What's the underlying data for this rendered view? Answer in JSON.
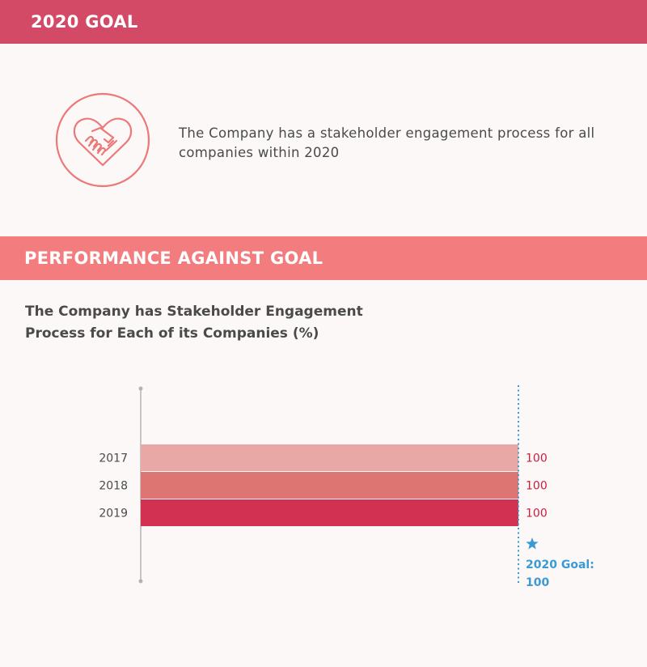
{
  "goal_section": {
    "title": "2020 GOAL",
    "icon": "heart-handshake-icon",
    "description": "The Company has a stakeholder engagement process for all companies within 2020"
  },
  "performance_section": {
    "title": "PERFORMANCE AGAINST GOAL"
  },
  "chart_data": {
    "type": "bar",
    "orientation": "horizontal",
    "title": "The Company has Stakeholder Engagement Process for Each of its Companies (%)",
    "categories": [
      "2017",
      "2018",
      "2019"
    ],
    "values": [
      100,
      100,
      100
    ],
    "value_labels": [
      "100",
      "100",
      "100"
    ],
    "bar_colors": [
      "#e8a9a6",
      "#dd7572",
      "#d33152"
    ],
    "xlim": [
      0,
      100
    ],
    "goal": {
      "value": 100,
      "label": "2020 Goal:",
      "value_label": "100",
      "icon": "star-icon",
      "color": "#3a9ad2"
    },
    "value_label_color": "#c8203d",
    "grid": false
  }
}
